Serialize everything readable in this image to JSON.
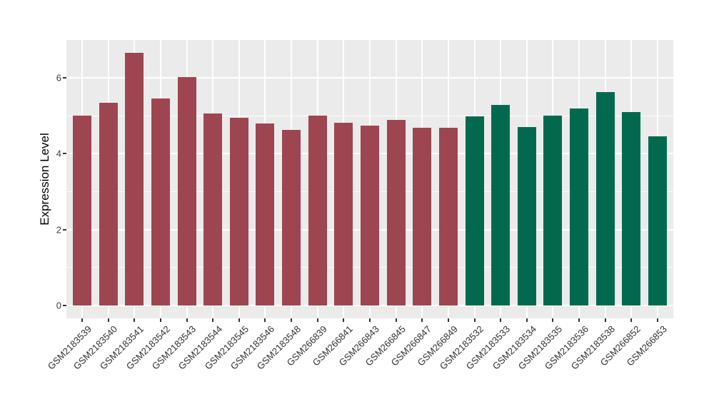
{
  "chart_data": {
    "type": "bar",
    "title": "",
    "xlabel": "",
    "ylabel": "Expression Level",
    "ylim": [
      0,
      7
    ],
    "yticks": [
      0,
      2,
      4,
      6
    ],
    "yticks_minor": [
      1,
      3,
      5
    ],
    "grid": true,
    "legend": false,
    "panel_background": "#EBEBEB",
    "gridline_color": "#ffffff",
    "categories": [
      "GSM2183539",
      "GSM2183540",
      "GSM2183541",
      "GSM2183542",
      "GSM2183543",
      "GSM2183544",
      "GSM2183545",
      "GSM2183546",
      "GSM2183548",
      "GSM266839",
      "GSM266841",
      "GSM266843",
      "GSM266845",
      "GSM266847",
      "GSM266849",
      "GSM2183532",
      "GSM2183533",
      "GSM2183534",
      "GSM2183535",
      "GSM2183536",
      "GSM2183538",
      "GSM266852",
      "GSM266853"
    ],
    "values": [
      5.01,
      5.35,
      6.66,
      5.46,
      6.02,
      5.07,
      4.94,
      4.8,
      4.63,
      5.0,
      4.81,
      4.74,
      4.89,
      4.69,
      4.68,
      4.98,
      5.29,
      4.7,
      5.01,
      5.19,
      5.63,
      5.1,
      4.46
    ],
    "bar_groups": [
      "maroon",
      "maroon",
      "maroon",
      "maroon",
      "maroon",
      "maroon",
      "maroon",
      "maroon",
      "maroon",
      "maroon",
      "maroon",
      "maroon",
      "maroon",
      "maroon",
      "maroon",
      "green",
      "green",
      "green",
      "green",
      "green",
      "green",
      "green",
      "green"
    ],
    "group_colors": {
      "maroon": "#9E4552",
      "green": "#016A4E"
    },
    "axis_text_color": "#404040",
    "tick_mark_color": "#333333"
  }
}
